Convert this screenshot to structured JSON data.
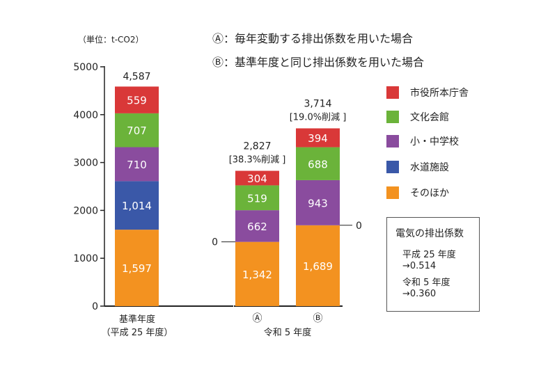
{
  "unit_label": "（単位：t-CO2）",
  "notes": {
    "a": "Ⓐ：毎年変動する排出係数を用いた場合",
    "b": "Ⓑ：基準年度と同じ排出係数を用いた場合"
  },
  "electricity_box": {
    "title": "電気の排出係数",
    "lines": [
      "平成 25 年度",
      "→0.514",
      "令和 5 年度",
      "→0.360"
    ]
  },
  "zero_marker": "0",
  "chart_data": {
    "type": "bar",
    "stacked": true,
    "y_ticks": [
      0,
      1000,
      2000,
      3000,
      4000,
      5000
    ],
    "ylim": [
      0,
      5000
    ],
    "series": [
      {
        "name": "そのほか",
        "color": "#f39220",
        "values": [
          1597,
          1342,
          1689
        ]
      },
      {
        "name": "水道施設",
        "color": "#3a58a8",
        "values": [
          1014,
          0,
          0
        ]
      },
      {
        "name": "小・中学校",
        "color": "#8a4c9e",
        "values": [
          710,
          662,
          943
        ]
      },
      {
        "name": "文化会館",
        "color": "#6bb33a",
        "values": [
          707,
          519,
          688
        ]
      },
      {
        "name": "市役所本庁舎",
        "color": "#d93838",
        "values": [
          559,
          304,
          394
        ]
      }
    ],
    "bars": [
      {
        "marker": "",
        "total_label": "4,587",
        "reduction_label": ""
      },
      {
        "marker": "Ⓐ",
        "total_label": "2,827",
        "reduction_label": "[38.3%削減 ]"
      },
      {
        "marker": "Ⓑ",
        "total_label": "3,714",
        "reduction_label": "[19.0%削減 ]"
      }
    ],
    "data_labels": [
      [
        "1,597",
        "1,014",
        "710",
        "707",
        "559"
      ],
      [
        "1,342",
        "",
        "662",
        "519",
        "304"
      ],
      [
        "1,689",
        "",
        "943",
        "688",
        "394"
      ]
    ],
    "legend_order": [
      "市役所本庁舎",
      "文化会館",
      "小・中学校",
      "水道施設",
      "そのほか"
    ],
    "group_labels": {
      "base_line1": "基準年度",
      "base_line2": "（平成 25 年度）",
      "r5": "令和 5 年度"
    }
  }
}
